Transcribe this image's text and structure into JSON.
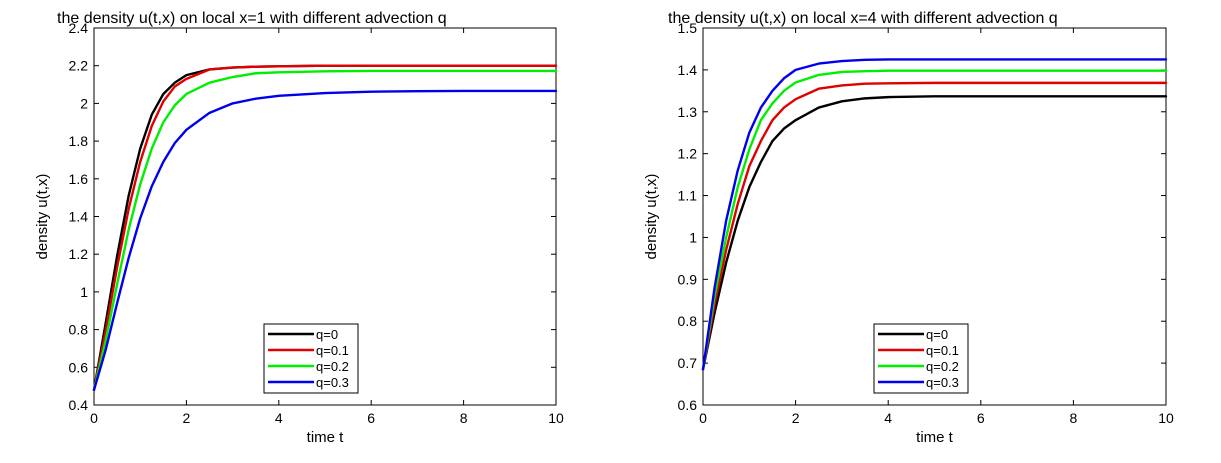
{
  "chart_data": [
    {
      "type": "line",
      "title": "the density u(t,x) on local x=1 with different advection q",
      "xlabel": "time t",
      "ylabel": "density u(t,x)",
      "xlim": [
        0,
        10
      ],
      "ylim": [
        0.4,
        2.4
      ],
      "xticks": [
        0,
        2,
        4,
        6,
        8,
        10
      ],
      "xtick_labels": [
        "0",
        "2",
        "4",
        "6",
        "8",
        "10"
      ],
      "yticks": [
        0.4,
        0.6,
        0.8,
        1.0,
        1.2,
        1.4,
        1.6,
        1.8,
        2.0,
        2.2,
        2.4
      ],
      "ytick_labels": [
        "0.4",
        "0.6",
        "0.8",
        "1",
        "1.2",
        "1.4",
        "1.6",
        "1.8",
        "2",
        "2.2",
        "2.4"
      ],
      "legend_position": "bottom-center",
      "x": [
        0,
        0.25,
        0.5,
        0.75,
        1,
        1.25,
        1.5,
        1.75,
        2,
        2.5,
        3,
        3.5,
        4,
        5,
        6,
        7,
        8,
        9,
        10
      ],
      "series": [
        {
          "name": "q=0",
          "color": "#000000",
          "values": [
            0.48,
            0.83,
            1.19,
            1.51,
            1.76,
            1.94,
            2.05,
            2.11,
            2.15,
            2.18,
            2.19,
            2.195,
            2.197,
            2.2,
            2.2,
            2.2,
            2.2,
            2.2,
            2.2
          ]
        },
        {
          "name": "q=0.1",
          "color": "#e00000",
          "values": [
            0.48,
            0.79,
            1.13,
            1.44,
            1.69,
            1.88,
            2.01,
            2.09,
            2.13,
            2.18,
            2.19,
            2.195,
            2.197,
            2.2,
            2.2,
            2.2,
            2.2,
            2.2,
            2.2
          ]
        },
        {
          "name": "q=0.2",
          "color": "#00ee00",
          "values": [
            0.48,
            0.74,
            1.04,
            1.33,
            1.57,
            1.76,
            1.9,
            1.99,
            2.05,
            2.11,
            2.14,
            2.16,
            2.165,
            2.17,
            2.172,
            2.172,
            2.172,
            2.172,
            2.172
          ]
        },
        {
          "name": "q=0.3",
          "color": "#0000ee",
          "values": [
            0.48,
            0.69,
            0.94,
            1.18,
            1.39,
            1.56,
            1.69,
            1.79,
            1.86,
            1.95,
            2.0,
            2.025,
            2.04,
            2.055,
            2.062,
            2.065,
            2.066,
            2.066,
            2.066
          ]
        }
      ]
    },
    {
      "type": "line",
      "title": "the density u(t,x) on local x=4 with different advection q",
      "xlabel": "time t",
      "ylabel": "density u(t,x)",
      "xlim": [
        0,
        10
      ],
      "ylim": [
        0.6,
        1.5
      ],
      "xticks": [
        0,
        2,
        4,
        6,
        8,
        10
      ],
      "xtick_labels": [
        "0",
        "2",
        "4",
        "6",
        "8",
        "10"
      ],
      "yticks": [
        0.6,
        0.7,
        0.8,
        0.9,
        1.0,
        1.1,
        1.2,
        1.3,
        1.4,
        1.5
      ],
      "ytick_labels": [
        "0.6",
        "0.7",
        "0.8",
        "0.9",
        "1",
        "1.1",
        "1.2",
        "1.3",
        "1.4",
        "1.5"
      ],
      "legend_position": "bottom-center",
      "x": [
        0,
        0.25,
        0.5,
        0.75,
        1,
        1.25,
        1.5,
        1.75,
        2,
        2.5,
        3,
        3.5,
        4,
        5,
        6,
        7,
        8,
        9,
        10
      ],
      "series": [
        {
          "name": "q=0",
          "color": "#000000",
          "values": [
            0.685,
            0.82,
            0.94,
            1.04,
            1.12,
            1.18,
            1.23,
            1.26,
            1.28,
            1.31,
            1.325,
            1.332,
            1.335,
            1.337,
            1.337,
            1.337,
            1.337,
            1.337,
            1.337
          ]
        },
        {
          "name": "q=0.1",
          "color": "#e00000",
          "values": [
            0.685,
            0.84,
            0.97,
            1.08,
            1.17,
            1.23,
            1.28,
            1.31,
            1.33,
            1.355,
            1.363,
            1.367,
            1.368,
            1.369,
            1.369,
            1.369,
            1.369,
            1.369,
            1.369
          ]
        },
        {
          "name": "q=0.2",
          "color": "#00ee00",
          "values": [
            0.685,
            0.86,
            1.0,
            1.12,
            1.21,
            1.28,
            1.32,
            1.35,
            1.37,
            1.388,
            1.395,
            1.397,
            1.398,
            1.398,
            1.398,
            1.398,
            1.398,
            1.398,
            1.398
          ]
        },
        {
          "name": "q=0.3",
          "color": "#0000ee",
          "values": [
            0.685,
            0.88,
            1.04,
            1.16,
            1.25,
            1.31,
            1.35,
            1.38,
            1.4,
            1.415,
            1.421,
            1.424,
            1.425,
            1.425,
            1.425,
            1.425,
            1.425,
            1.425,
            1.425
          ]
        }
      ]
    }
  ]
}
